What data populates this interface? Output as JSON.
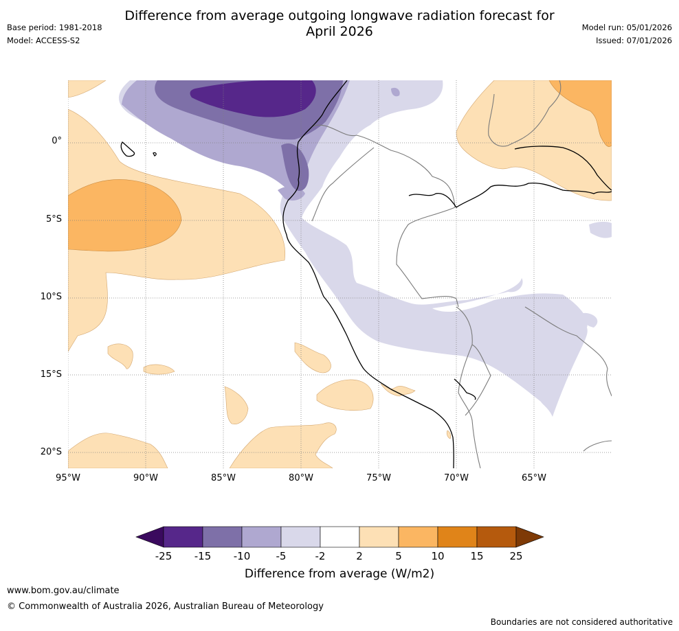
{
  "title": "Difference from average outgoing longwave radiation forecast for April 2026",
  "base_period": "Base period: 1981-2018",
  "model": "Model: ACCESS-S2",
  "model_run": "Model run: 05/01/2026",
  "issued": "Issued: 07/01/2026",
  "lat_labels": [
    "0°",
    "5°S",
    "10°S",
    "15°S",
    "20°S"
  ],
  "lon_labels": [
    "95°W",
    "90°W",
    "85°W",
    "80°W",
    "75°W",
    "70°W",
    "65°W"
  ],
  "colorbar": {
    "label": "Difference from average (W/m2)",
    "ticks": [
      "-25",
      "-15",
      "-10",
      "-5",
      "-2",
      "2",
      "5",
      "10",
      "15",
      "25"
    ],
    "colors": [
      "#3a0a5e",
      "#56278a",
      "#7e70a8",
      "#afa8d0",
      "#d9d8ea",
      "#ffffff",
      "#fde0b5",
      "#fbb662",
      "#e08419",
      "#b55a0d",
      "#7e3a06"
    ]
  },
  "footer": {
    "url": "www.bom.gov.au/climate",
    "copyright": "© Commonwealth of Australia 2026, Australian Bureau of Meteorology",
    "disclaimer": "Boundaries are not considered authoritative"
  }
}
